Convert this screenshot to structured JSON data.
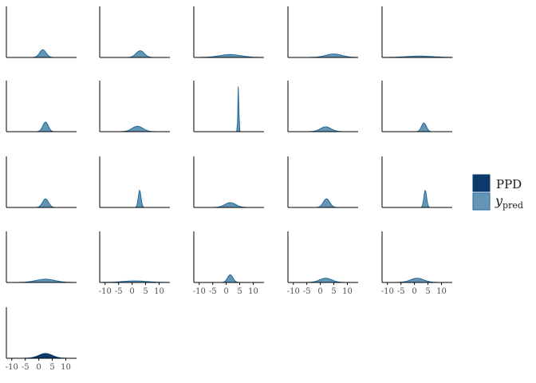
{
  "chart_data": {
    "type": "area",
    "layout": "facet grid 5 columns, 21 panels",
    "x_ticks": [
      -10,
      -5,
      0,
      5,
      10
    ],
    "xlim": [
      -12,
      14
    ],
    "grid": false,
    "legend_placement": "right",
    "legend": [
      {
        "key": "ppd",
        "label": "PPD",
        "fill": "#0c3a6b",
        "stroke": "#0c3a6b"
      },
      {
        "key": "ypred",
        "label": "y",
        "subscript": "pred",
        "fill": "#6496b4",
        "stroke": "#1e6a9e"
      }
    ],
    "colors": {
      "axis": "#000000",
      "tick_text": "#4d4d4d",
      "ypred_fill": "#6496b4",
      "ypred_line": "#1e6a9e",
      "ppd_fill": "#0c3a6b"
    },
    "panels": [
      {
        "series": "ypred",
        "mean": 1.5,
        "sd": 1.2,
        "height": 0.4
      },
      {
        "series": "ypred",
        "mean": 3.0,
        "sd": 1.5,
        "height": 0.35
      },
      {
        "series": "ypred",
        "mean": 1.5,
        "sd": 4.0,
        "height": 0.15
      },
      {
        "series": "ypred",
        "mean": 5.0,
        "sd": 3.0,
        "height": 0.18
      },
      {
        "series": "ypred",
        "mean": 2.0,
        "sd": 5.0,
        "height": 0.07
      },
      {
        "series": "ypred",
        "mean": 2.5,
        "sd": 1.0,
        "height": 0.5
      },
      {
        "series": "ypred",
        "mean": 2.0,
        "sd": 2.0,
        "height": 0.28
      },
      {
        "series": "ypred",
        "mean": 4.5,
        "sd": 0.18,
        "height": 2.4
      },
      {
        "series": "ypred",
        "mean": 2.0,
        "sd": 2.0,
        "height": 0.25
      },
      {
        "series": "ypred",
        "mean": 3.5,
        "sd": 0.9,
        "height": 0.45
      },
      {
        "series": "ypred",
        "mean": 2.5,
        "sd": 1.1,
        "height": 0.45
      },
      {
        "series": "ypred",
        "mean": 2.8,
        "sd": 0.5,
        "height": 0.9
      },
      {
        "series": "ypred",
        "mean": 1.5,
        "sd": 2.0,
        "height": 0.25
      },
      {
        "series": "ypred",
        "mean": 2.3,
        "sd": 1.2,
        "height": 0.45
      },
      {
        "series": "ypred",
        "mean": 4.0,
        "sd": 0.5,
        "height": 0.9
      },
      {
        "series": "ypred",
        "mean": 2.5,
        "sd": 3.5,
        "height": 0.17
      },
      {
        "series": "ypred",
        "mean": 1.0,
        "sd": 4.5,
        "height": 0.08
      },
      {
        "series": "ypred",
        "mean": 1.5,
        "sd": 1.0,
        "height": 0.4
      },
      {
        "series": "ypred",
        "mean": 2.0,
        "sd": 2.3,
        "height": 0.22
      },
      {
        "series": "ypred",
        "mean": 1.0,
        "sd": 2.5,
        "height": 0.22
      },
      {
        "series": "ppd",
        "mean": 2.5,
        "sd": 2.5,
        "height": 0.25
      }
    ]
  }
}
